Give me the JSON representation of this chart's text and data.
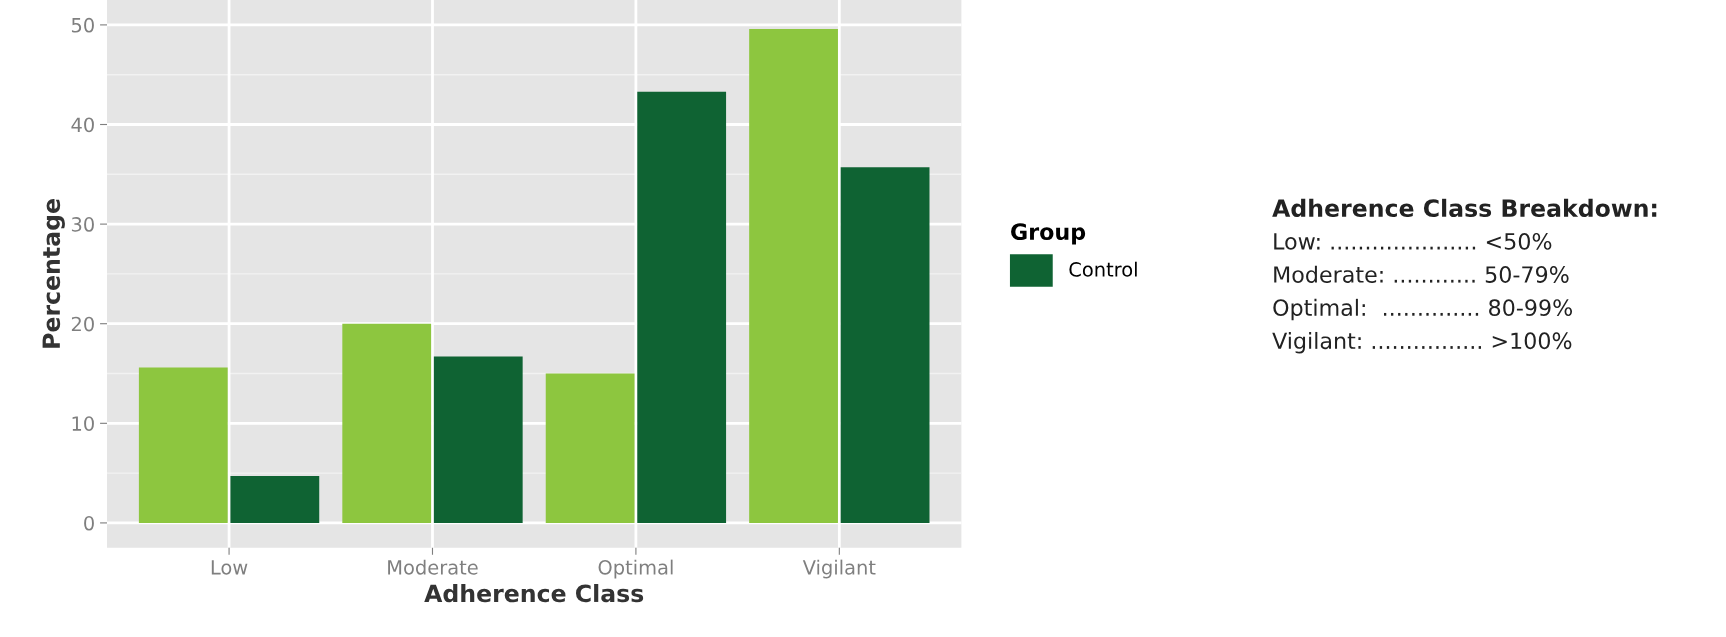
{
  "chart_data": {
    "type": "bar",
    "xlabel": "Adherence Class",
    "ylabel": "Percentage",
    "legend_title": "Group",
    "categories": [
      "Low",
      "Moderate",
      "Optimal",
      "Vigilant"
    ],
    "series": [
      {
        "color": "#8dc63f",
        "values": [
          15.6,
          20.0,
          15.0,
          49.6
        ]
      },
      {
        "name": "Control",
        "color": "#0f6333",
        "values": [
          4.7,
          16.7,
          43.3,
          35.7
        ]
      }
    ],
    "ylim": [
      -2.5,
      52.5
    ],
    "yticks": [
      0,
      10,
      20,
      30,
      40,
      50
    ],
    "grid": true,
    "legend": "right",
    "annotations": [
      "Adherence Class Breakdown:",
      "Low: ..................... <50%",
      "Moderate: ............ 50-79%",
      "Optimal:  .............. 80-99%",
      "Vigilant: ................ >100%"
    ]
  }
}
